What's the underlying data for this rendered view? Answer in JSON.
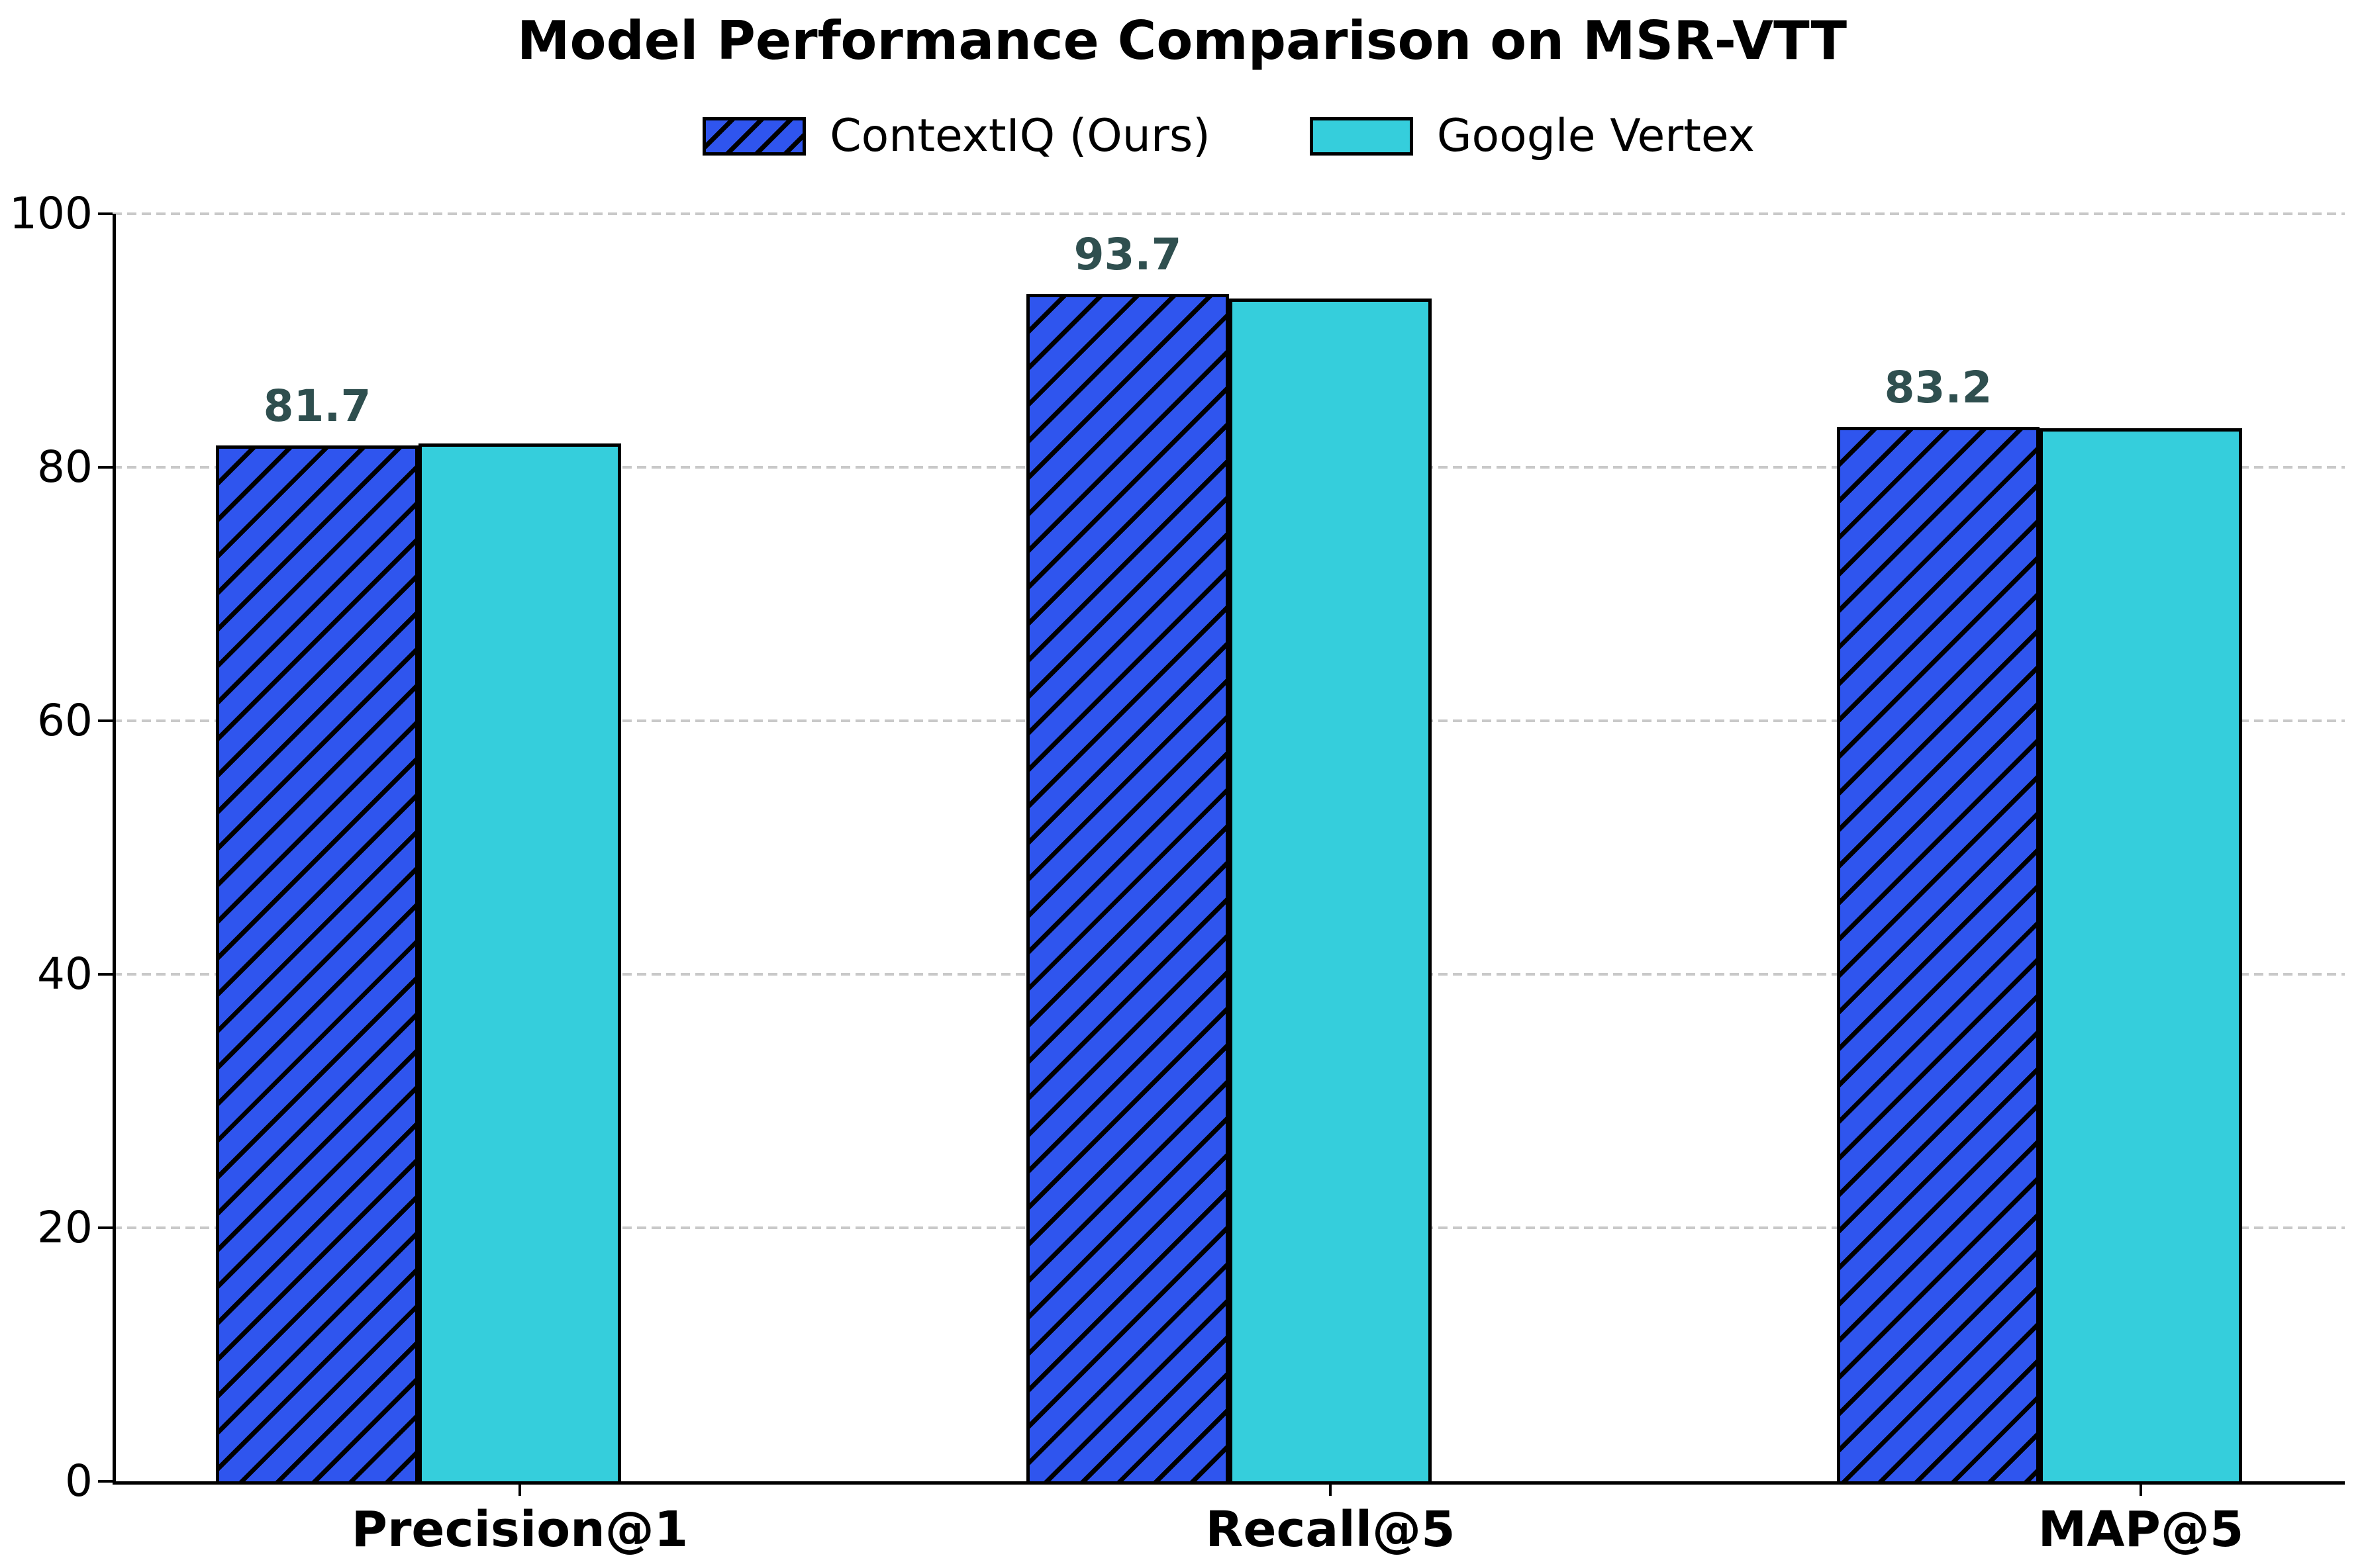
{
  "title": "Model Performance Comparison on MSR-VTT",
  "chart_data": {
    "type": "bar",
    "title": "Model Performance Comparison on MSR-VTT",
    "categories": [
      "Precision@1",
      "Recall@5",
      "MAP@5"
    ],
    "series": [
      {
        "name": "ContextIQ (Ours)",
        "values": [
          81.7,
          93.7,
          83.2
        ],
        "bar_labels": [
          "81.7",
          "93.7",
          "83.2"
        ],
        "color": "#2F55EE",
        "hatch": "//"
      },
      {
        "name": "Google Vertex",
        "values": [
          81.9,
          93.3,
          83.1
        ],
        "bar_labels": null,
        "color": "#35CEDC",
        "hatch": null
      }
    ],
    "xlabel": "",
    "ylabel": "",
    "ylim": [
      0,
      100
    ],
    "yticks": [
      0,
      20,
      40,
      60,
      80,
      100
    ],
    "ytick_labels": [
      "0",
      "20",
      "40",
      "60",
      "80",
      "100"
    ],
    "grid": "horizontal-dashed",
    "gridline_color": "#c9c9c9",
    "legend_position": "upper-center",
    "bar_label_color": "#2F4F4F",
    "bar_edge_color": "#000000"
  }
}
